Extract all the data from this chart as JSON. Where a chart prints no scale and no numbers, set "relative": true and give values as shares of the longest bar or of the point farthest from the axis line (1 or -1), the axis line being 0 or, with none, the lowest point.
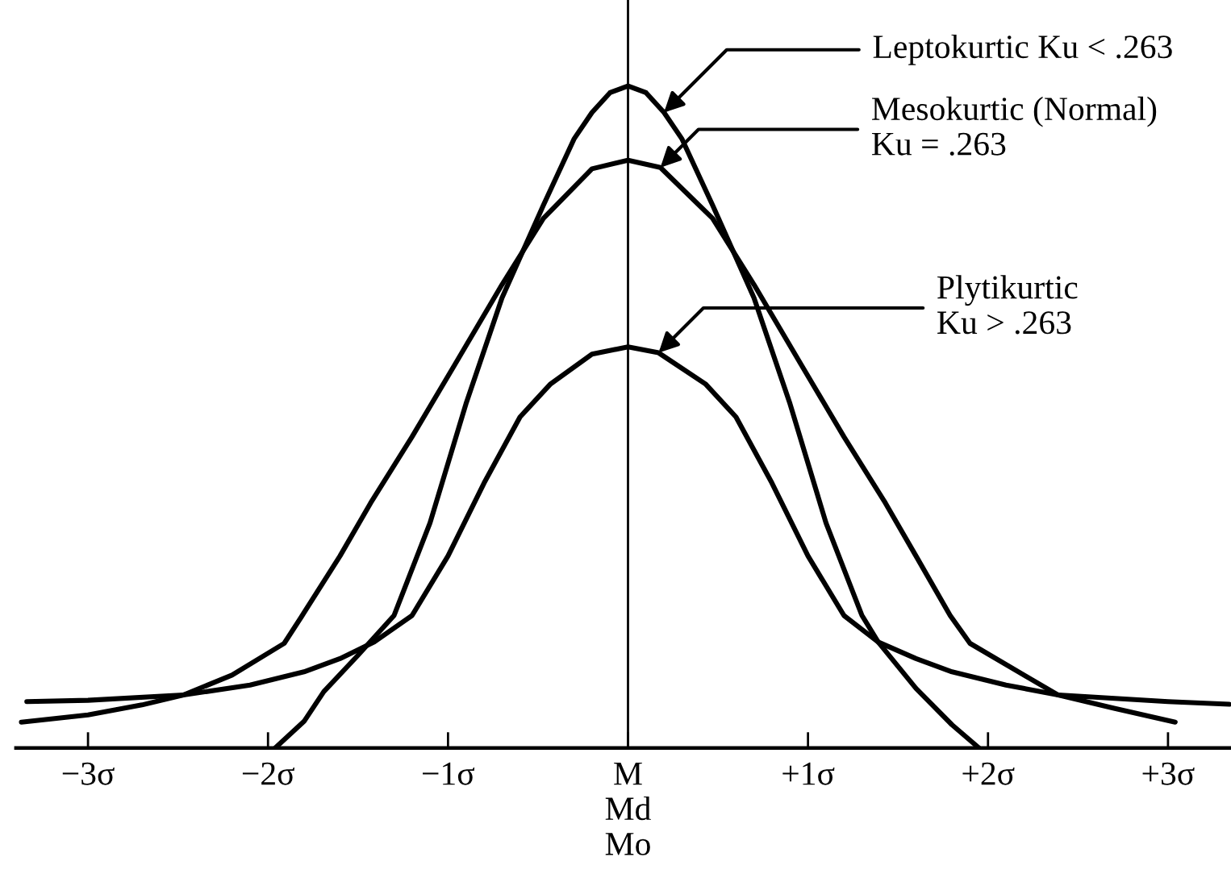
{
  "chart_data": {
    "type": "line",
    "relative": true,
    "xlim": [
      -3.4,
      3.35
    ],
    "xticks": [
      {
        "value": -3,
        "label": "−3σ"
      },
      {
        "value": -2,
        "label": "−2σ"
      },
      {
        "value": -1,
        "label": "−1σ"
      },
      {
        "value": 0,
        "label": "M\nMd\nMo"
      },
      {
        "value": 1,
        "label": "+1σ"
      },
      {
        "value": 2,
        "label": "+2σ"
      },
      {
        "value": 3,
        "label": "+3σ"
      }
    ],
    "series": [
      {
        "color": "#000000",
        "x": [
          -1.96,
          -1.8,
          -1.69,
          -1.5,
          -1.3,
          -1.1,
          -0.9,
          -0.7,
          -0.47,
          -0.3,
          -0.2,
          -0.1,
          0,
          0.1,
          0.2,
          0.3,
          0.47,
          0.7,
          0.9,
          1.1,
          1.3,
          1.39,
          1.6,
          1.8,
          1.95
        ],
        "values": [
          0,
          0.04,
          0.085,
          0.14,
          0.2,
          0.34,
          0.52,
          0.68,
          0.82,
          0.92,
          0.96,
          0.99,
          1,
          0.99,
          0.96,
          0.92,
          0.82,
          0.68,
          0.52,
          0.34,
          0.2,
          0.16,
          0.09,
          0.035,
          0
        ]
      },
      {
        "color": "#000000",
        "x": [
          -3.37,
          -3.0,
          -2.7,
          -2.47,
          -2.2,
          -1.91,
          -1.81,
          -1.6,
          -1.43,
          -1.2,
          -0.96,
          -0.7,
          -0.47,
          -0.2,
          0,
          0.18,
          0.47,
          0.7,
          0.96,
          1.2,
          1.43,
          1.6,
          1.79,
          1.9,
          2.2,
          2.39,
          2.7,
          3.04
        ],
        "values": [
          0.039,
          0.05,
          0.065,
          0.08,
          0.11,
          0.158,
          0.2,
          0.29,
          0.37,
          0.47,
          0.58,
          0.7,
          0.8,
          0.875,
          0.888,
          0.877,
          0.8,
          0.7,
          0.58,
          0.47,
          0.37,
          0.29,
          0.2,
          0.158,
          0.11,
          0.08,
          0.06,
          0.039
        ]
      },
      {
        "color": "#000000",
        "x": [
          -3.34,
          -3.0,
          -2.47,
          -2.1,
          -1.8,
          -1.6,
          -1.41,
          -1.2,
          -1.0,
          -0.8,
          -0.6,
          -0.43,
          -0.2,
          0,
          0.17,
          0.43,
          0.6,
          0.8,
          1.0,
          1.2,
          1.39,
          1.6,
          1.8,
          2.1,
          2.39,
          3.0,
          3.34
        ],
        "values": [
          0.07,
          0.072,
          0.08,
          0.095,
          0.115,
          0.135,
          0.16,
          0.2,
          0.29,
          0.4,
          0.5,
          0.55,
          0.595,
          0.606,
          0.597,
          0.55,
          0.5,
          0.4,
          0.29,
          0.2,
          0.16,
          0.135,
          0.115,
          0.095,
          0.08,
          0.07,
          0.066
        ]
      }
    ],
    "ref_lines": [
      {
        "axis": "x",
        "value": 0,
        "color": "#000000"
      }
    ],
    "annotations": [
      {
        "text": "Leptokurtic Ku < .263",
        "x": 0.2,
        "y": 0.96
      },
      {
        "text": "Mesokurtic (Normal)\nKu = .263",
        "x": 0.18,
        "y": 0.877
      },
      {
        "text": "Plytikurtic\nKu > .263",
        "x": 0.17,
        "y": 0.597
      }
    ],
    "grid": false,
    "legend": false,
    "tick_labels": "x"
  }
}
